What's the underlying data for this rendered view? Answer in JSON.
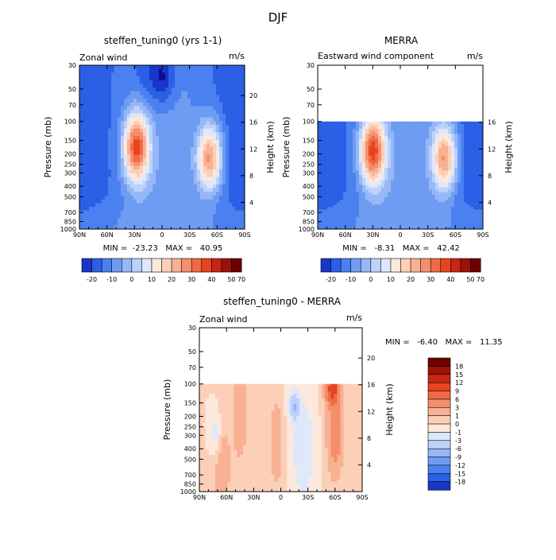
{
  "figure": {
    "title": "DJF"
  },
  "colors": {
    "wind_levels": [
      -20,
      -10,
      0,
      10,
      20,
      30,
      40,
      50,
      60,
      70
    ],
    "wind_palette": [
      "#0a0f87",
      "#1936c8",
      "#2b5fe6",
      "#4b80f1",
      "#6f9cf3",
      "#97b8f6",
      "#bcd2fa",
      "#dfe8fb",
      "#fde8dc",
      "#fcd0b8",
      "#f8b193",
      "#f58e6d",
      "#f16a45",
      "#e7431f",
      "#c82515",
      "#991307",
      "#6d0000"
    ],
    "diff_palette": [
      "#0a0f87",
      "#1936c8",
      "#2b5fe6",
      "#4b80f1",
      "#6f9cf3",
      "#97b8f6",
      "#bcd2fa",
      "#dfe8fb",
      "#fde8dc",
      "#fcd0b8",
      "#f8b193",
      "#f58e6d",
      "#f16a45",
      "#e7431f",
      "#c82515",
      "#991307",
      "#6d0000"
    ]
  },
  "chart_data": [
    {
      "type": "heatmap",
      "title": "steffen_tuning0 (yrs 1-1)",
      "left_label": "Zonal wind",
      "units": "m/s",
      "ylabel": "Pressure (mb)",
      "y2label": "Height (km)",
      "xlim": [
        90,
        -90
      ],
      "ylim_pressure": [
        1000,
        30
      ],
      "x_ticks": [
        "90N",
        "60N",
        "30N",
        "0",
        "30S",
        "60S",
        "90S"
      ],
      "pressure_ticks": [
        "30",
        "50",
        "70",
        "100",
        "150",
        "200",
        "250",
        "300",
        "400",
        "500",
        "700",
        "850",
        "1000"
      ],
      "height_ticks": [
        "4",
        "8",
        "12",
        "16",
        "20"
      ],
      "stats": "MIN =  -23.23   MAX =   40.95",
      "min": -23.23,
      "max": 40.95,
      "colorbar_labels": [
        "-20",
        "-10",
        "0",
        "10",
        "20",
        "30",
        "40",
        "50",
        "70"
      ],
      "jets": [
        {
          "lat": 28,
          "pressure": 175,
          "peak": 40.9
        },
        {
          "lat": -52,
          "pressure": 220,
          "peak": 34
        }
      ],
      "top_pressure": 30
    },
    {
      "type": "heatmap",
      "title": "MERRA",
      "left_label": "Eastward wind component",
      "units": "m/s",
      "ylabel": "Pressure (mb)",
      "y2label": "Height (km)",
      "xlim": [
        90,
        -90
      ],
      "ylim_pressure": [
        1000,
        30
      ],
      "x_ticks": [
        "90N",
        "60N",
        "30N",
        "0",
        "30S",
        "60S",
        "90S"
      ],
      "pressure_ticks": [
        "30",
        "50",
        "70",
        "100",
        "150",
        "200",
        "250",
        "300",
        "400",
        "500",
        "700",
        "850",
        "1000"
      ],
      "height_ticks": [
        "4",
        "8",
        "12",
        "16"
      ],
      "stats": "MIN =   -8.31   MAX =   42.42",
      "min": -8.31,
      "max": 42.42,
      "colorbar_labels": [
        "-20",
        "-10",
        "0",
        "10",
        "20",
        "30",
        "40",
        "50",
        "70"
      ],
      "jets": [
        {
          "lat": 30,
          "pressure": 190,
          "peak": 42.4
        },
        {
          "lat": -48,
          "pressure": 220,
          "peak": 33
        }
      ],
      "top_pressure": 100
    },
    {
      "type": "heatmap",
      "title": "steffen_tuning0 - MERRA",
      "left_label": "Zonal wind",
      "units": "m/s",
      "ylabel": "Pressure (mb)",
      "y2label": "Height (km)",
      "xlim": [
        90,
        -90
      ],
      "ylim_pressure": [
        1000,
        30
      ],
      "x_ticks": [
        "90N",
        "60N",
        "30N",
        "0",
        "30S",
        "60S",
        "90S"
      ],
      "pressure_ticks": [
        "30",
        "50",
        "70",
        "100",
        "150",
        "200",
        "250",
        "300",
        "400",
        "500",
        "700",
        "850",
        "1000"
      ],
      "height_ticks": [
        "4",
        "8",
        "12",
        "16",
        "20"
      ],
      "stats": "MIN =   -6.40   MAX =   11.35",
      "min": -6.4,
      "max": 11.35,
      "colorbar_labels": [
        "18",
        "15",
        "12",
        "9",
        "6",
        "3",
        "1",
        "0",
        "-1",
        "-3",
        "-6",
        "-9",
        "-12",
        "-15",
        "-18"
      ],
      "top_pressure": 100
    }
  ]
}
